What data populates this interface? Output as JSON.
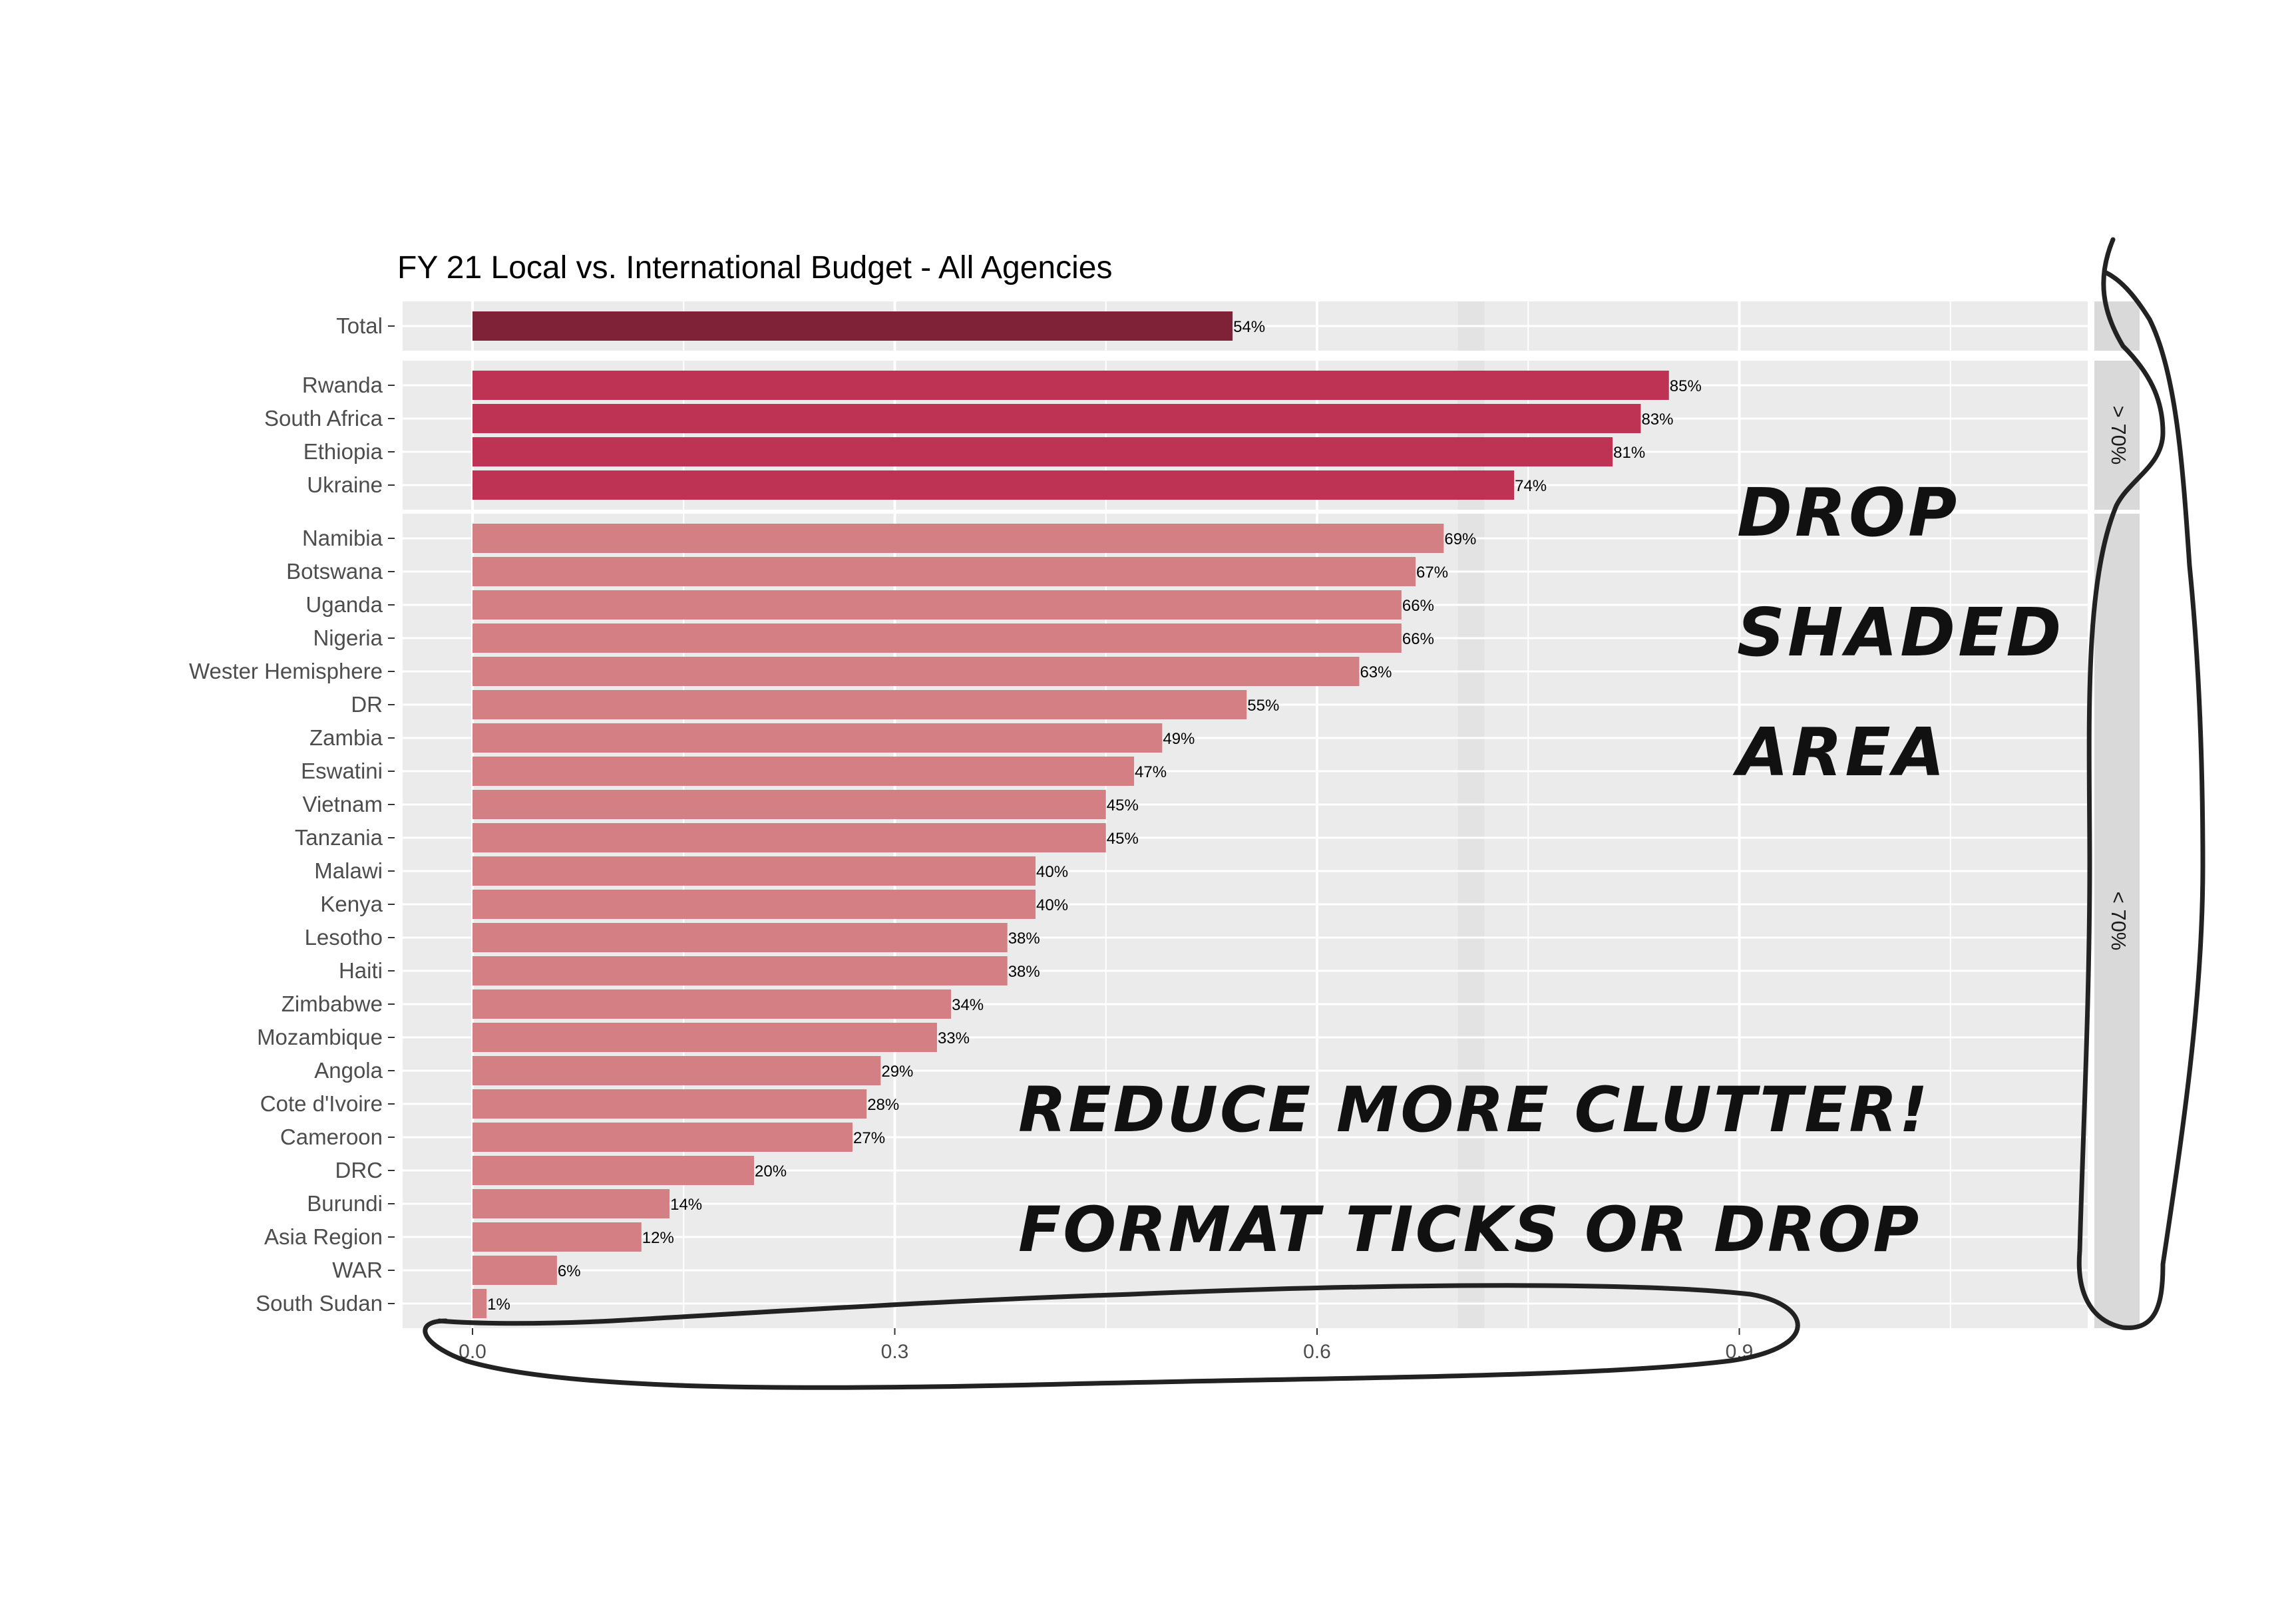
{
  "chart_data": {
    "type": "bar",
    "orientation": "horizontal",
    "title": "FY 21 Local vs. International Budget - All Agencies",
    "xlabel": "",
    "ylabel": "",
    "xlim": [
      0,
      1.15
    ],
    "x_ticks": [
      0.0,
      0.3,
      0.6,
      0.9
    ],
    "x_tick_labels": [
      "0.0",
      "0.3",
      "0.6",
      "0.9"
    ],
    "grid": true,
    "facets": [
      {
        "strip": "",
        "color": "#7f2238",
        "categories": [
          "Total"
        ],
        "values": [
          0.54
        ],
        "labels": [
          "54%"
        ]
      },
      {
        "strip": "> 70%",
        "color": "#be3253",
        "categories": [
          "Rwanda",
          "South Africa",
          "Ethiopia",
          "Ukraine"
        ],
        "values": [
          0.85,
          0.83,
          0.81,
          0.74
        ],
        "labels": [
          "85%",
          "83%",
          "81%",
          "74%"
        ]
      },
      {
        "strip": "< 70%",
        "color": "#d47f83",
        "categories": [
          "Namibia",
          "Botswana",
          "Uganda",
          "Nigeria",
          "Wester Hemisphere",
          "DR",
          "Zambia",
          "Eswatini",
          "Vietnam",
          "Tanzania",
          "Malawi",
          "Kenya",
          "Lesotho",
          "Haiti",
          "Zimbabwe",
          "Mozambique",
          "Angola",
          "Cote d'Ivoire",
          "Cameroon",
          "DRC",
          "Burundi",
          "Asia Region",
          "WAR",
          "South Sudan"
        ],
        "values": [
          0.69,
          0.67,
          0.66,
          0.66,
          0.63,
          0.55,
          0.49,
          0.47,
          0.45,
          0.45,
          0.4,
          0.4,
          0.38,
          0.38,
          0.34,
          0.33,
          0.29,
          0.28,
          0.27,
          0.2,
          0.14,
          0.12,
          0.06,
          0.01
        ],
        "labels": [
          "69%",
          "67%",
          "66%",
          "66%",
          "63%",
          "55%",
          "49%",
          "47%",
          "45%",
          "45%",
          "40%",
          "40%",
          "38%",
          "38%",
          "34%",
          "33%",
          "29%",
          "28%",
          "27%",
          "20%",
          "14%",
          "12%",
          "6%",
          "1%"
        ]
      }
    ],
    "reference_band": {
      "x0": 0.7,
      "color": "#e3e3e3"
    }
  },
  "annotations": {
    "drop_lines": [
      "DROP",
      "SHADED",
      "AREA"
    ],
    "clutter_line": "REDUCE MORE CLUTTER!",
    "ticks_line": "FORMAT TICKS OR DROP"
  },
  "colors": {
    "panel_bg": "#ebebeb",
    "grid": "#ffffff",
    "strip_bg": "#d9d9d9",
    "ink": "#222222"
  }
}
